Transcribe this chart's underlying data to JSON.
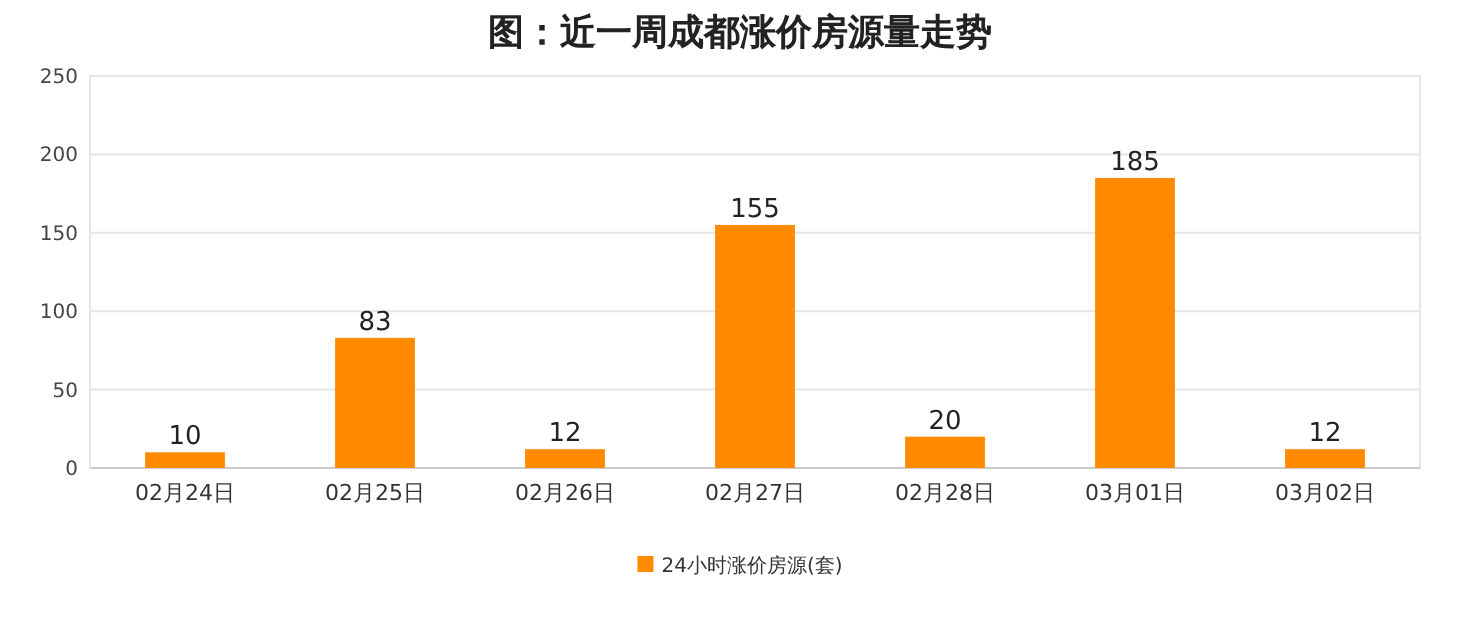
{
  "chart_data": {
    "type": "bar",
    "title": "图：近一周成都涨价房源量走势",
    "categories": [
      "02月24日",
      "02月25日",
      "02月26日",
      "02月27日",
      "02月28日",
      "03月01日",
      "03月02日"
    ],
    "series": [
      {
        "name": "24小时涨价房源(套)",
        "color": "#ff8a00",
        "values": [
          10,
          83,
          12,
          155,
          20,
          185,
          12
        ]
      }
    ],
    "ylim": [
      0,
      250
    ],
    "yticks": [
      0,
      50,
      100,
      150,
      200,
      250
    ],
    "grid": "y",
    "legend": "bottom",
    "data_labels": true
  }
}
